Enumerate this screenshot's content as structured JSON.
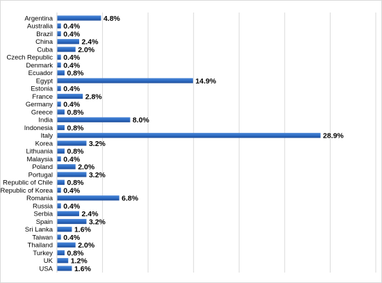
{
  "chart_data": {
    "type": "bar",
    "orientation": "horizontal",
    "categories": [
      "Argentina",
      "Australia",
      "Brazil",
      "China",
      "Cuba",
      "Czech Republic",
      "Denmark",
      "Ecuador",
      "Egypt",
      "Estonia",
      "France",
      "Germany",
      "Greece",
      "India",
      "Indonesia",
      "Italy",
      "Korea",
      "Lithuania",
      "Malaysia",
      "Poland",
      "Portugal",
      "Republic of Chile",
      "Republic of Korea",
      "Romania",
      "Russia",
      "Serbia",
      "Spain",
      "Sri Lanka",
      "Taiwan",
      "Thailand",
      "Turkey",
      "UK",
      "USA"
    ],
    "values": [
      4.8,
      0.4,
      0.4,
      2.4,
      2.0,
      0.4,
      0.4,
      0.8,
      14.9,
      0.4,
      2.8,
      0.4,
      0.8,
      8.0,
      0.8,
      28.9,
      3.2,
      0.8,
      0.4,
      2.0,
      3.2,
      0.8,
      0.4,
      6.8,
      0.4,
      2.4,
      3.2,
      1.6,
      0.4,
      2.0,
      0.8,
      1.2,
      1.6
    ],
    "data_labels": [
      "4.8%",
      "0.4%",
      "0.4%",
      "2.4%",
      "2.0%",
      "0.4%",
      "0.4%",
      "0.8%",
      "14.9%",
      "0.4%",
      "2.8%",
      "0.4%",
      "0.8%",
      "8.0%",
      "0.8%",
      "28.9%",
      "3.2%",
      "0.8%",
      "0.4%",
      "2.0%",
      "3.2%",
      "0.8%",
      "0.4%",
      "6.8%",
      "0.4%",
      "2.4%",
      "3.2%",
      "1.6%",
      "0.4%",
      "2.0%",
      "0.8%",
      "1.2%",
      "1.6%"
    ],
    "xlim": [
      0,
      35
    ],
    "grid": true,
    "legend": "none",
    "bar_color": "#2E6DC4",
    "bar_color_dark": "#1F4E9A",
    "gridline_color": "#d9d9d9"
  }
}
